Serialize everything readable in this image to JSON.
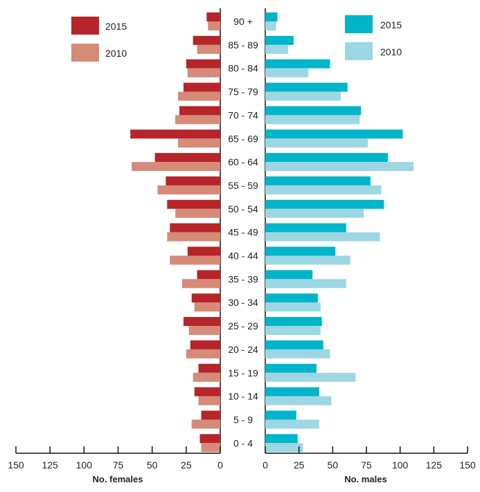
{
  "chart_data": {
    "type": "bar",
    "categories": [
      "90 +",
      "85 - 89",
      "80 - 84",
      "75 - 79",
      "70 - 74",
      "65 - 69",
      "60 - 64",
      "55 - 59",
      "50 - 54",
      "45 - 49",
      "40 - 44",
      "35 - 39",
      "30 - 34",
      "25 - 29",
      "20 - 24",
      "15 - 19",
      "10 - 14",
      "5 - 9",
      "0 - 4"
    ],
    "females": {
      "xlabel": "No. females",
      "xlim": [
        0,
        150
      ],
      "ticks": [
        "150",
        "125",
        "100",
        "75",
        "50",
        "25",
        "0"
      ],
      "series": [
        {
          "name": "2015",
          "color": "#b5252a",
          "values": [
            10,
            20,
            25,
            27,
            30,
            66,
            48,
            40,
            39,
            37,
            24,
            17,
            21,
            27,
            22,
            16,
            19,
            14,
            15
          ]
        },
        {
          "name": "2010",
          "color": "#d68a78",
          "values": [
            9,
            17,
            24,
            31,
            33,
            31,
            65,
            46,
            33,
            39,
            37,
            28,
            19,
            23,
            25,
            20,
            16,
            21,
            14
          ]
        }
      ]
    },
    "males": {
      "xlabel": "No. males",
      "xlim": [
        0,
        150
      ],
      "ticks": [
        "0",
        "25",
        "50",
        "75",
        "100",
        "125",
        "150"
      ],
      "series": [
        {
          "name": "2015",
          "color": "#00b5c9",
          "values": [
            9,
            21,
            48,
            61,
            71,
            102,
            91,
            78,
            88,
            60,
            52,
            35,
            39,
            42,
            43,
            38,
            40,
            23,
            24
          ]
        },
        {
          "name": "2010",
          "color": "#9dd7e3",
          "values": [
            8,
            17,
            32,
            56,
            70,
            76,
            110,
            86,
            73,
            85,
            63,
            60,
            41,
            41,
            48,
            67,
            49,
            40,
            28
          ]
        }
      ]
    },
    "legend_placement": "top (left and right panels)",
    "grid": false
  }
}
